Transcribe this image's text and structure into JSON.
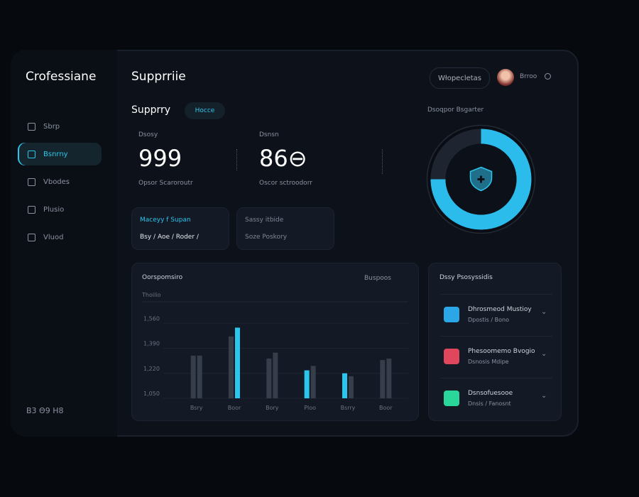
{
  "sidebar": {
    "brand": "Crofessiane",
    "items": [
      "Sbrp",
      "Bsnrny",
      "Vbodes",
      "Plusio",
      "Vluod"
    ],
    "active": 1,
    "footer": "B3 Θ9 H8"
  },
  "header": {
    "title": "Supprriie",
    "search": "Włopecletas",
    "user": "Brroo"
  },
  "summary": {
    "title": "Supprry",
    "badge": "Hocce",
    "stats": [
      {
        "label": "Dsosy",
        "value": "999",
        "caption": "Opsor Scaroroutr"
      },
      {
        "label": "Dsnsn",
        "value": "86⊖",
        "caption": "Oscor sctroodorr"
      }
    ]
  },
  "cards": [
    {
      "title": "Maceyy f Supan",
      "text": "Bsy / Aoe / Roder /"
    },
    {
      "title": "Sassy itbide",
      "text": "Soze Poskory"
    }
  ],
  "chart_panel": {
    "filter": "Buspoos"
  },
  "list": {
    "title": "Dssy Psosyssidis",
    "items": [
      {
        "title": "Dhrosmeod Mustioy",
        "subtitle": "Dpostis / Bono",
        "color": "#2ba6e6"
      },
      {
        "title": "Phesoomemo Bvogio",
        "subtitle": "Dsnosis Mdipe",
        "color": "#e0475c"
      },
      {
        "title": "Dsnsofuesooe",
        "subtitle": "Dnsis / Fanosnt",
        "color": "#2bd69a"
      }
    ]
  },
  "chart_data": [
    {
      "type": "bar",
      "title": "Oorspomsiro",
      "ylabel": "Thoilio",
      "categories": [
        "Bsry",
        "Boor",
        "Bory",
        "Ploo",
        "Bsrry",
        "Boor"
      ],
      "series": [
        {
          "values": [
            1340,
            1470,
            1320,
            1240,
            1220,
            1310
          ],
          "colors": [
            "#363d4b",
            "#363d4b",
            "#363d4b",
            "#2cc6ec",
            "#2cc6ec",
            "#363d4b"
          ]
        },
        {
          "values": [
            1340,
            1530,
            1360,
            1270,
            1200,
            1320
          ],
          "colors": [
            "#363d4b",
            "#2cc6ec",
            "#363d4b",
            "#363d4b",
            "#363d4b",
            "#363d4b"
          ]
        }
      ],
      "ylim": [
        1050,
        1730
      ],
      "yticks": [
        {
          "value": 1050,
          "label": "1,050"
        },
        {
          "value": 1220,
          "label": "1,220"
        },
        {
          "value": 1390,
          "label": "1,390"
        },
        {
          "value": 1560,
          "label": "1,560"
        }
      ],
      "grid": true
    },
    {
      "type": "pie",
      "title": "Dsoqpor Bsgarter",
      "values": [
        75,
        25
      ],
      "colors": [
        "#2bbcec",
        "#1e2531"
      ]
    }
  ]
}
